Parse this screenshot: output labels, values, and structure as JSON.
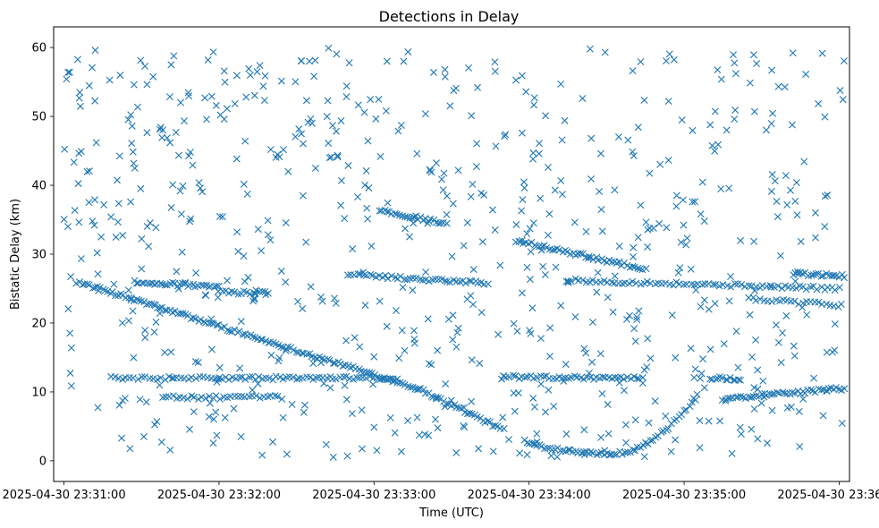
{
  "chart_data": {
    "type": "scatter",
    "title": "Detections in Delay",
    "xlabel": "Time (UTC)",
    "ylabel": "Bistatic Delay (km)",
    "marker": "x",
    "color": "#1f77b4",
    "xlim_seconds": [
      -4,
      304
    ],
    "ylim": [
      -3,
      63
    ],
    "x_ticks": [
      {
        "value": 0,
        "label": "2025-04-30 23:31:00"
      },
      {
        "value": 60,
        "label": "2025-04-30 23:32:00"
      },
      {
        "value": 120,
        "label": "2025-04-30 23:33:00"
      },
      {
        "value": 180,
        "label": "2025-04-30 23:34:00"
      },
      {
        "value": 240,
        "label": "2025-04-30 23:35:00"
      },
      {
        "value": 300,
        "label": "2025-04-30 23:36:00"
      }
    ],
    "y_ticks": [
      0,
      10,
      20,
      30,
      40,
      50,
      60
    ],
    "x_start": "2025-04-30 23:31:00",
    "x_unit": "seconds after x_start",
    "tracks": [
      {
        "name": "long-descending",
        "t_start": 5,
        "t_end": 137,
        "delay_start": 26.0,
        "delay_end": 10.5,
        "step": 1.0
      },
      {
        "name": "descending-low",
        "t_start": 137,
        "t_end": 170,
        "delay_start": 10.5,
        "delay_end": 4.5,
        "step": 1.0
      },
      {
        "name": "curve-down",
        "t_start": 178,
        "t_end": 210,
        "delay_start": 3.0,
        "delay_end": 1.0,
        "step": 1.0
      },
      {
        "name": "curve-up",
        "t_start": 211,
        "t_end": 245,
        "delay_start": 1.0,
        "delay_end": 9.5,
        "step": 1.0
      },
      {
        "name": "band-26",
        "t_start": 27,
        "t_end": 60,
        "delay_start": 26.0,
        "delay_end": 25.2,
        "step": 1.0
      },
      {
        "name": "band-24",
        "t_start": 60,
        "t_end": 80,
        "delay_start": 24.5,
        "delay_end": 24.3,
        "step": 1.2
      },
      {
        "name": "band-12a",
        "t_start": 18,
        "t_end": 60,
        "delay_start": 12.0,
        "delay_end": 12.0,
        "step": 1.5
      },
      {
        "name": "band-12b",
        "t_start": 60,
        "t_end": 130,
        "delay_start": 12.0,
        "delay_end": 12.0,
        "step": 1.3
      },
      {
        "name": "band-9",
        "t_start": 38,
        "t_end": 85,
        "delay_start": 9.2,
        "delay_end": 9.2,
        "step": 1.4
      },
      {
        "name": "band-36",
        "t_start": 122,
        "t_end": 148,
        "delay_start": 36.3,
        "delay_end": 34.5,
        "step": 1.0
      },
      {
        "name": "band-27",
        "t_start": 110,
        "t_end": 165,
        "delay_start": 27.0,
        "delay_end": 25.8,
        "step": 1.2
      },
      {
        "name": "band-32",
        "t_start": 175,
        "t_end": 225,
        "delay_start": 32.0,
        "delay_end": 27.8,
        "step": 1.0
      },
      {
        "name": "band-25",
        "t_start": 195,
        "t_end": 300,
        "delay_start": 26.2,
        "delay_end": 25.0,
        "step": 1.4
      },
      {
        "name": "band-12c",
        "t_start": 170,
        "t_end": 225,
        "delay_start": 12.2,
        "delay_end": 12.0,
        "step": 1.2
      },
      {
        "name": "band-12d",
        "t_start": 250,
        "t_end": 262,
        "delay_start": 12.0,
        "delay_end": 11.8,
        "step": 1.0
      },
      {
        "name": "band-9b",
        "t_start": 255,
        "t_end": 302,
        "delay_start": 9.0,
        "delay_end": 10.5,
        "step": 1.0
      },
      {
        "name": "band-27b",
        "t_start": 282,
        "t_end": 302,
        "delay_start": 27.2,
        "delay_end": 26.8,
        "step": 1.0
      },
      {
        "name": "band-23",
        "t_start": 265,
        "t_end": 302,
        "delay_start": 23.5,
        "delay_end": 22.5,
        "step": 1.5
      }
    ],
    "clutter": {
      "count": 700,
      "t_range": [
        0,
        302
      ],
      "delay_range": [
        0.5,
        60
      ],
      "seed": 12345
    }
  }
}
